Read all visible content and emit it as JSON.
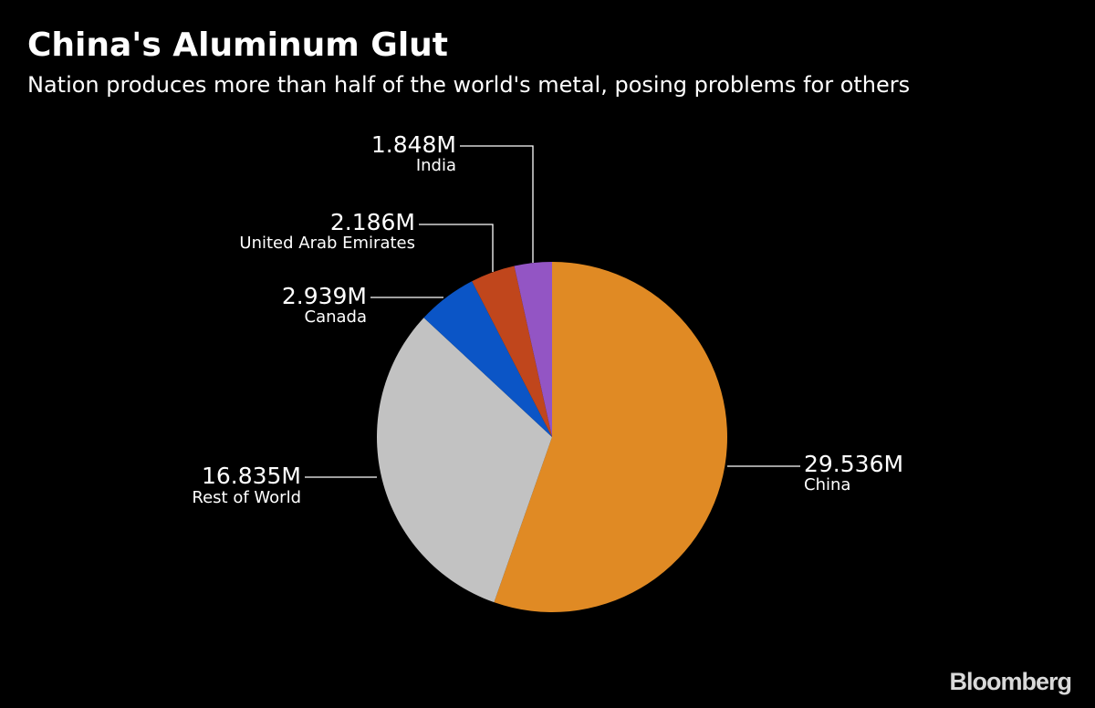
{
  "chart_data": {
    "type": "pie",
    "title": "China's Aluminum Glut",
    "subtitle": "Nation produces more than half of the world's metal, posing problems for others",
    "slices": [
      {
        "label": "China",
        "value": 29.536,
        "display": "29.536M",
        "color": "#e08a24"
      },
      {
        "label": "Rest of World",
        "value": 16.835,
        "display": "16.835M",
        "color": "#c2c2c2"
      },
      {
        "label": "Canada",
        "value": 2.939,
        "display": "2.939M",
        "color": "#0b55c6"
      },
      {
        "label": "United Arab Emirates",
        "value": 2.186,
        "display": "2.186M",
        "color": "#c0461c"
      },
      {
        "label": "India",
        "value": 1.848,
        "display": "1.848M",
        "color": "#9355c4"
      }
    ]
  },
  "source": "Bloomberg"
}
